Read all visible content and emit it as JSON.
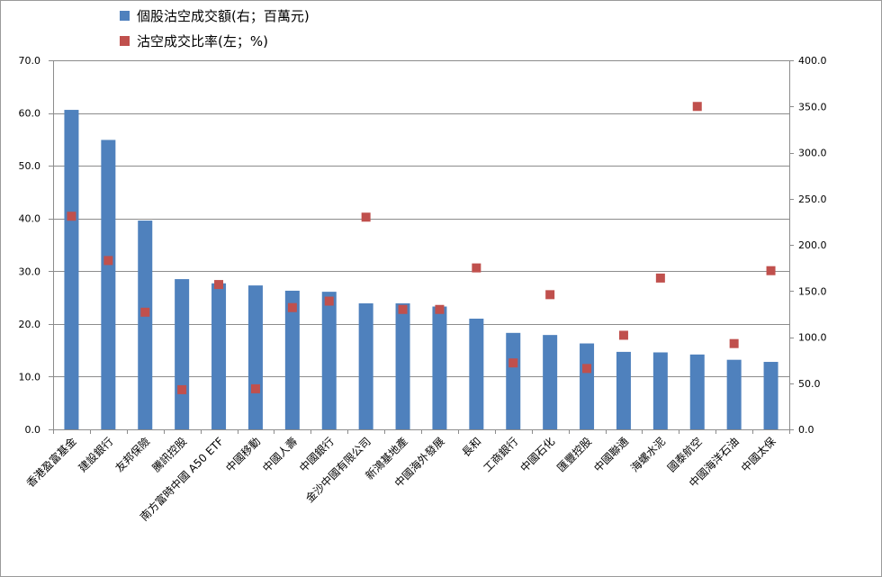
{
  "chart_data": {
    "type": "bar",
    "categories": [
      "香港盈富基金",
      "建設銀行",
      "友邦保險",
      "騰訊控股",
      "南方富時中國 A50 ETF",
      "中國移動",
      "中國人壽",
      "中國銀行",
      "金沙中國有限公司",
      "新鴻基地產",
      "中國海外發展",
      "長和",
      "工商銀行",
      "中國石化",
      "匯豐控股",
      "中國聯通",
      "海螺水泥",
      "國泰航空",
      "中國海洋石油",
      "中國太保"
    ],
    "series": [
      {
        "name": "個股沽空成交額(右；百萬元)",
        "type": "bar",
        "axis": "left",
        "color": "#4f81bd",
        "values": [
          60.6,
          54.9,
          39.6,
          28.5,
          27.7,
          27.3,
          26.3,
          26.1,
          23.9,
          23.9,
          23.3,
          21.0,
          18.3,
          17.9,
          16.3,
          14.7,
          14.6,
          14.2,
          13.2,
          12.8
        ]
      },
      {
        "name": "沽空成交比率(左；%)",
        "type": "scatter",
        "axis": "right",
        "color": "#c0504d",
        "values": [
          231,
          183,
          127,
          43,
          157,
          44,
          132,
          139,
          230,
          130,
          130,
          175,
          72,
          146,
          66,
          102,
          164,
          350,
          93,
          172
        ]
      }
    ],
    "left_axis": {
      "min": 0,
      "max": 70,
      "step": 10,
      "ticks": [
        "0.0",
        "10.0",
        "20.0",
        "30.0",
        "40.0",
        "50.0",
        "60.0",
        "70.0"
      ]
    },
    "right_axis": {
      "min": 0,
      "max": 400,
      "step": 50,
      "ticks": [
        "0.0",
        "50.0",
        "100.0",
        "150.0",
        "200.0",
        "250.0",
        "300.0",
        "350.0",
        "400.0"
      ]
    },
    "grid": true,
    "legend": "top-left",
    "title": "",
    "xlabel": "",
    "ylabel": ""
  }
}
